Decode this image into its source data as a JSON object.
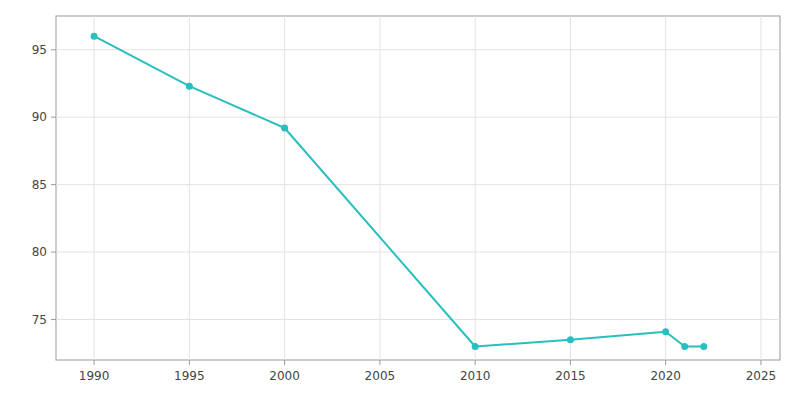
{
  "chart_data": {
    "type": "line",
    "x": [
      1990,
      1995,
      2000,
      2010,
      2015,
      2020,
      2021,
      2022
    ],
    "values": [
      96,
      92.3,
      89.2,
      73.0,
      73.5,
      74.1,
      73.0,
      73.0
    ],
    "color": "#2abfbf",
    "marker": "circle",
    "xlim": [
      1988,
      2026
    ],
    "ylim": [
      72.0,
      97.5
    ],
    "xticks": [
      1990,
      1995,
      2000,
      2005,
      2010,
      2015,
      2020,
      2025
    ],
    "yticks": [
      75,
      80,
      85,
      90,
      95
    ],
    "grid": true
  }
}
